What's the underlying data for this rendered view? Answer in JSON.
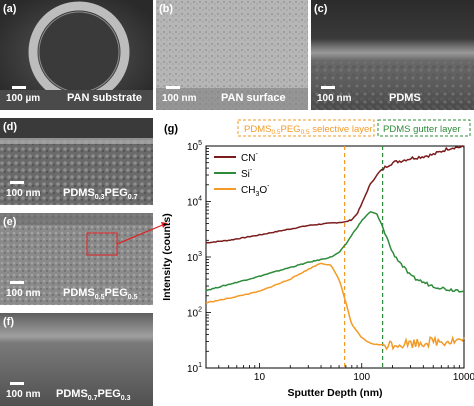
{
  "panels": {
    "a": {
      "label": "(a)",
      "scale": "100 µm",
      "caption": "PAN substrate"
    },
    "b": {
      "label": "(b)",
      "scale": "100 nm",
      "caption": "PAN surface"
    },
    "c": {
      "label": "(c)",
      "scale": "100 nm",
      "caption": "PDMS"
    },
    "d": {
      "label": "(d)",
      "scale": "100 nm",
      "cap_main1": "PDMS",
      "cap_sub1": "0.3",
      "cap_main2": "PEG",
      "cap_sub2": "0.7"
    },
    "e": {
      "label": "(e)",
      "scale": "100 nm",
      "cap_main1": "PDMS",
      "cap_sub1": "0.5",
      "cap_main2": "PEG",
      "cap_sub2": "0.5"
    },
    "f": {
      "label": "(f)",
      "scale": "100 nm",
      "cap_main1": "PDMS",
      "cap_sub1": "0.7",
      "cap_main2": "PEG",
      "cap_sub2": "0.3"
    }
  },
  "chart_label": "(g)",
  "annotations": {
    "selective": {
      "pre": "PDMS",
      "s1": "0.5",
      "mid": "PEG",
      "s2": "0.5",
      "post": " selective layer",
      "color": "#f39a27"
    },
    "gutter": {
      "text": "PDMS gutter layer",
      "color": "#2e8b3a"
    }
  },
  "chart_data": {
    "type": "line",
    "xlabel": "Sputter Depth (nm)",
    "ylabel": "Intensity (counts)",
    "xscale": "log",
    "yscale": "log",
    "xlim": [
      3,
      1000
    ],
    "ylim": [
      10,
      100000
    ],
    "xticks": [
      10,
      100,
      1000
    ],
    "xtick_labels": [
      "10",
      "100",
      "1000"
    ],
    "yticks": [
      10,
      100,
      1000,
      10000,
      100000
    ],
    "ytick_label_exps": [
      "1",
      "2",
      "3",
      "4",
      "5"
    ],
    "vlines": [
      68,
      160
    ],
    "legend_position": "top-left",
    "series": [
      {
        "name": "CN",
        "sup": "-",
        "color": "#7b1c1c",
        "x": [
          3,
          5,
          10,
          20,
          30,
          45,
          60,
          70,
          80,
          90,
          100,
          120,
          150,
          180,
          200,
          250,
          300,
          400,
          500,
          600,
          700,
          800,
          1000
        ],
        "y": [
          1800,
          2000,
          2500,
          3200,
          3700,
          4000,
          4200,
          4300,
          4700,
          6000,
          9000,
          20000,
          35000,
          45000,
          50000,
          55000,
          60000,
          65000,
          70000,
          80000,
          90000,
          95000,
          95000
        ]
      },
      {
        "name": "Si",
        "sup": "-",
        "color": "#2e8b3a",
        "x": [
          3,
          5,
          10,
          20,
          30,
          40,
          50,
          60,
          70,
          80,
          100,
          120,
          140,
          160,
          180,
          200,
          250,
          300,
          400,
          500,
          700,
          1000
        ],
        "y": [
          250,
          320,
          450,
          650,
          800,
          900,
          1000,
          1200,
          1700,
          2500,
          4500,
          6500,
          6000,
          3500,
          2000,
          1200,
          700,
          450,
          350,
          300,
          260,
          250
        ]
      },
      {
        "name": "CH",
        "sub": "3",
        "post": "O",
        "sup": "-",
        "color": "#f39a27",
        "x": [
          3,
          5,
          10,
          20,
          30,
          40,
          50,
          60,
          70,
          80,
          100,
          120,
          150,
          200,
          300,
          500,
          700,
          1000
        ],
        "y": [
          150,
          180,
          240,
          400,
          600,
          780,
          700,
          400,
          150,
          60,
          35,
          28,
          26,
          27,
          28,
          30,
          31,
          32
        ]
      }
    ]
  }
}
